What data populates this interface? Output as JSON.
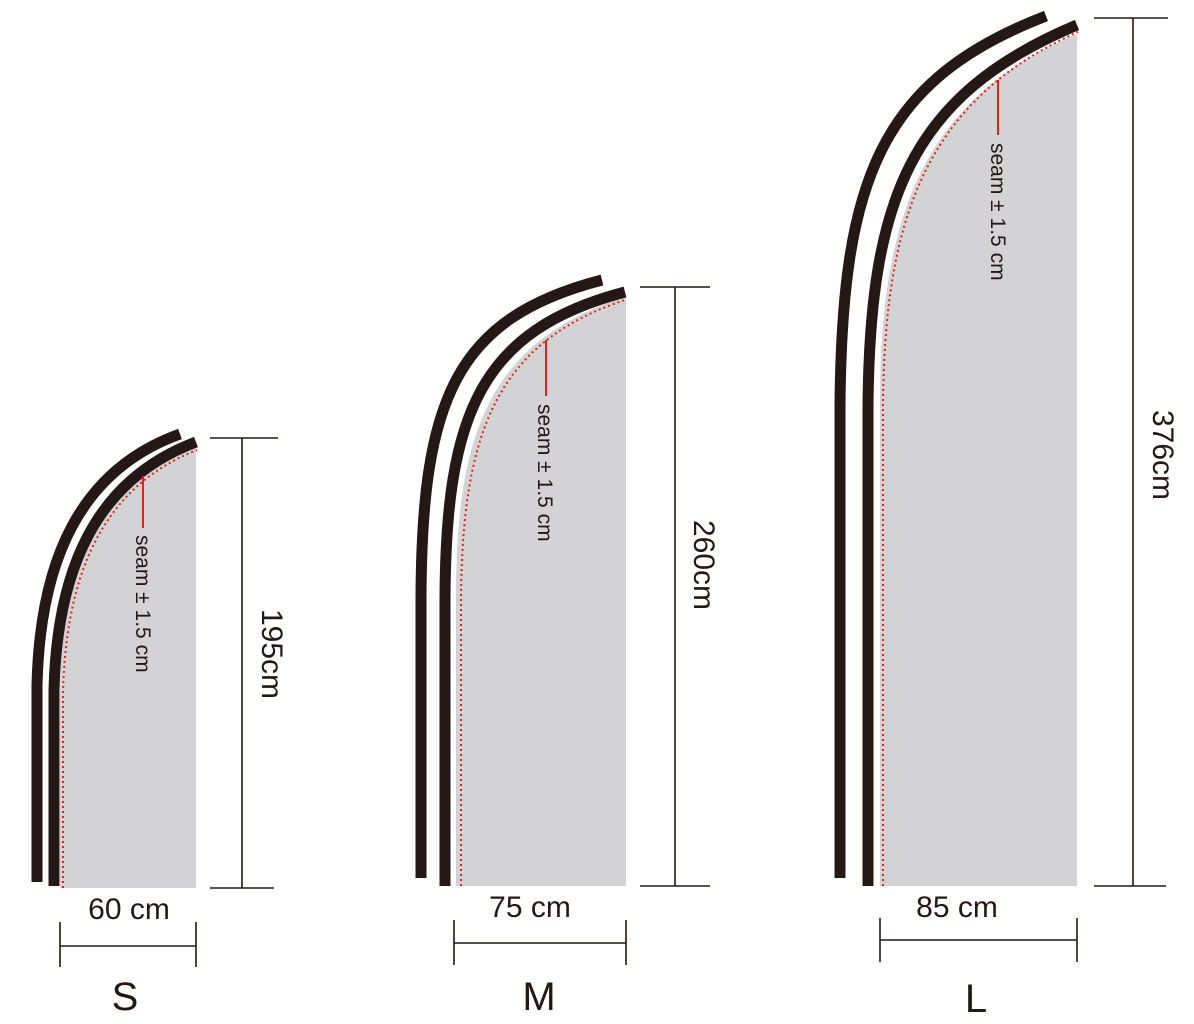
{
  "colors": {
    "pole": "#231815",
    "fabric": "#d3d3d5",
    "seam_line": "#e2231a",
    "dimension_line": "#231815",
    "background": "#ffffff"
  },
  "flags": [
    {
      "size": "S",
      "width_label": "60 cm",
      "height_label": "195cm",
      "seam_label": "seam ± 1.5 cm"
    },
    {
      "size": "M",
      "width_label": "75 cm",
      "height_label": "260cm",
      "seam_label": "seam ± 1.5 cm"
    },
    {
      "size": "L",
      "width_label": "85 cm",
      "height_label": "376cm",
      "seam_label": "seam ± 1.5 cm"
    }
  ]
}
